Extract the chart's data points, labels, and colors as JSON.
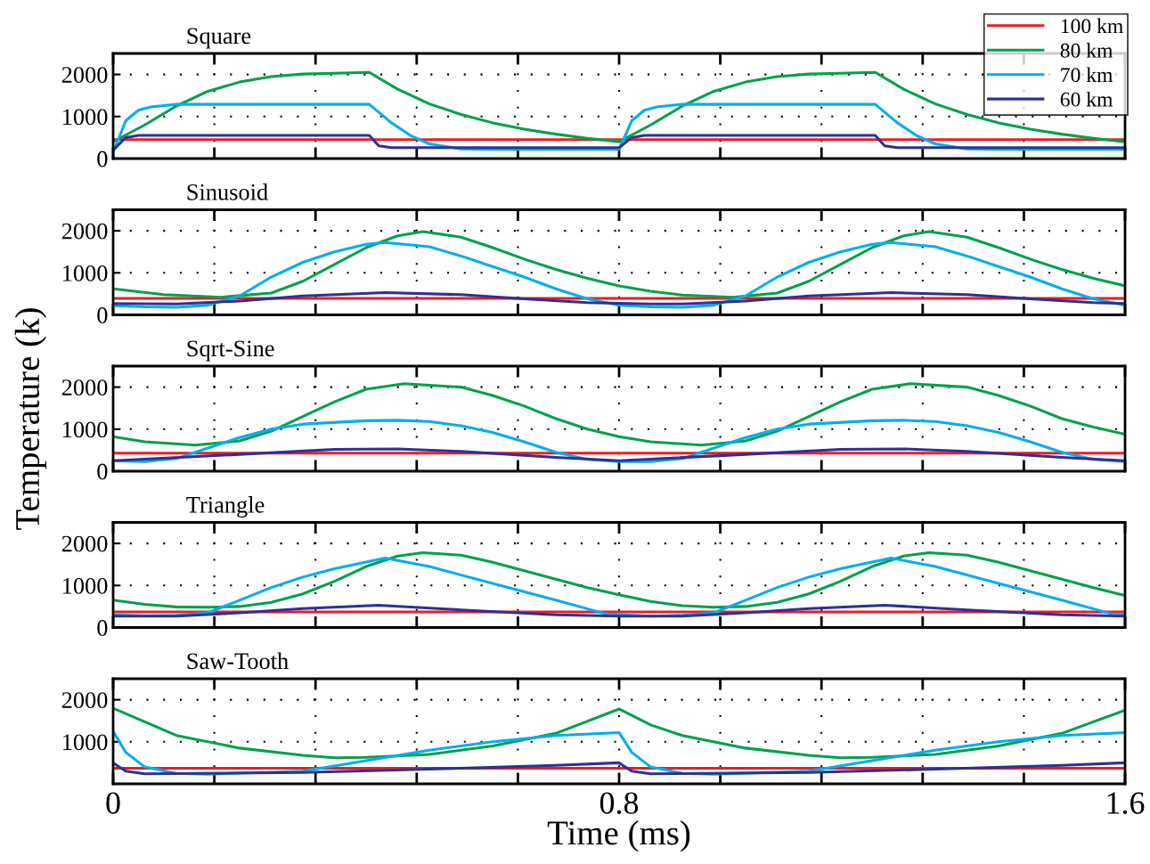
{
  "chart_data": [
    {
      "type": "line",
      "title": "Square",
      "xlim": [
        0,
        1.6
      ],
      "ylim": [
        0,
        2500
      ],
      "xticks": [
        0,
        {
          "value": 0.16,
          "label": null
        },
        {
          "value": 0.32,
          "label": null
        },
        {
          "value": 0.48,
          "label": null
        },
        {
          "value": 0.64,
          "label": null
        },
        0.8,
        {
          "value": 0.96,
          "label": null
        },
        {
          "value": 1.12,
          "label": null
        },
        {
          "value": 1.28,
          "label": null
        },
        {
          "value": 1.44,
          "label": null
        },
        1.6
      ],
      "yticks": [
        0,
        1000,
        2000
      ],
      "tick_labels": "y",
      "grid": true,
      "legend": "top right",
      "line_style": "solid",
      "marker": "none",
      "series": [
        {
          "name": "100 km",
          "color": "#ee1c25",
          "x": [
            0,
            1.6
          ],
          "values": [
            450,
            450
          ]
        },
        {
          "name": "80 km",
          "color": "#00a14b",
          "x": [
            0,
            0.05,
            0.1,
            0.15,
            0.2,
            0.25,
            0.3,
            0.35,
            0.405,
            0.45,
            0.5,
            0.55,
            0.6,
            0.65,
            0.7,
            0.75,
            0.8,
            0.85,
            0.9,
            0.95,
            1.0,
            1.05,
            1.1,
            1.15,
            1.205,
            1.25,
            1.3,
            1.35,
            1.4,
            1.45,
            1.5,
            1.55,
            1.6
          ],
          "values": [
            400,
            800,
            1250,
            1600,
            1820,
            1950,
            2010,
            2030,
            2050,
            1650,
            1300,
            1050,
            850,
            700,
            580,
            480,
            400,
            800,
            1250,
            1600,
            1820,
            1950,
            2010,
            2030,
            2050,
            1650,
            1300,
            1050,
            850,
            700,
            580,
            480,
            400
          ]
        },
        {
          "name": "70 km",
          "color": "#00aeef",
          "x": [
            0,
            0.02,
            0.04,
            0.06,
            0.1,
            0.405,
            0.44,
            0.47,
            0.5,
            0.55,
            0.6,
            0.8,
            0.82,
            0.84,
            0.86,
            0.9,
            1.205,
            1.24,
            1.27,
            1.3,
            1.35,
            1.4,
            1.6
          ],
          "values": [
            150,
            900,
            1150,
            1230,
            1290,
            1290,
            850,
            550,
            350,
            230,
            220,
            220,
            900,
            1150,
            1230,
            1290,
            1290,
            850,
            550,
            350,
            230,
            220,
            220
          ]
        },
        {
          "name": "60 km",
          "color": "#2e3192",
          "x": [
            0,
            0.02,
            0.04,
            0.405,
            0.42,
            0.44,
            0.8,
            0.82,
            0.84,
            1.205,
            1.22,
            1.24,
            1.6
          ],
          "values": [
            200,
            500,
            550,
            550,
            300,
            260,
            260,
            500,
            550,
            550,
            300,
            260,
            260
          ]
        }
      ]
    },
    {
      "type": "line",
      "title": "Sinusoid",
      "xlim": [
        0,
        1.6
      ],
      "ylim": [
        0,
        2500
      ],
      "xticks": [
        0,
        {
          "value": 0.16,
          "label": null
        },
        {
          "value": 0.32,
          "label": null
        },
        {
          "value": 0.48,
          "label": null
        },
        {
          "value": 0.64,
          "label": null
        },
        0.8,
        {
          "value": 0.96,
          "label": null
        },
        {
          "value": 1.12,
          "label": null
        },
        {
          "value": 1.28,
          "label": null
        },
        {
          "value": 1.44,
          "label": null
        },
        1.6
      ],
      "yticks": [
        0,
        1000,
        2000
      ],
      "tick_labels": "y",
      "grid": true,
      "line_style": "solid",
      "marker": "none",
      "series": [
        {
          "color": "#ee1c25",
          "x": [
            0,
            1.6
          ],
          "values": [
            390,
            390
          ]
        },
        {
          "color": "#00a14b",
          "x": [
            0,
            0.08,
            0.17,
            0.25,
            0.3,
            0.35,
            0.4,
            0.45,
            0.49,
            0.55,
            0.6,
            0.655,
            0.7,
            0.75,
            0.8,
            0.85,
            0.9,
            0.98,
            1.05,
            1.1,
            1.15,
            1.2,
            1.25,
            1.29,
            1.35,
            1.4,
            1.455,
            1.5,
            1.55,
            1.6
          ],
          "values": [
            620,
            480,
            420,
            520,
            800,
            1200,
            1600,
            1880,
            1980,
            1850,
            1600,
            1300,
            1080,
            870,
            690,
            560,
            470,
            420,
            520,
            800,
            1200,
            1600,
            1880,
            1980,
            1850,
            1600,
            1300,
            1080,
            870,
            690
          ]
        },
        {
          "color": "#00aeef",
          "x": [
            0,
            0.05,
            0.1,
            0.15,
            0.2,
            0.25,
            0.3,
            0.35,
            0.4,
            0.43,
            0.5,
            0.55,
            0.6,
            0.65,
            0.7,
            0.75,
            0.8,
            0.85,
            0.9,
            0.95,
            1.0,
            1.05,
            1.1,
            1.15,
            1.2,
            1.23,
            1.3,
            1.35,
            1.4,
            1.45,
            1.5,
            1.55,
            1.6
          ],
          "values": [
            220,
            190,
            180,
            230,
            450,
            900,
            1250,
            1500,
            1680,
            1720,
            1620,
            1400,
            1150,
            900,
            620,
            380,
            230,
            190,
            180,
            230,
            450,
            900,
            1250,
            1500,
            1680,
            1720,
            1620,
            1400,
            1150,
            900,
            620,
            380,
            230
          ]
        },
        {
          "color": "#2e3192",
          "x": [
            0,
            0.1,
            0.2,
            0.3,
            0.43,
            0.55,
            0.65,
            0.75,
            0.85,
            0.9,
            1.0,
            1.1,
            1.23,
            1.35,
            1.45,
            1.55,
            1.6
          ],
          "values": [
            270,
            260,
            330,
            450,
            530,
            480,
            380,
            290,
            260,
            260,
            330,
            450,
            530,
            480,
            380,
            290,
            270
          ]
        }
      ]
    },
    {
      "type": "line",
      "title": "Sqrt-Sine",
      "ylabel": "Temperature (k)",
      "xlim": [
        0,
        1.6
      ],
      "ylim": [
        0,
        2500
      ],
      "xticks": [
        0,
        {
          "value": 0.16,
          "label": null
        },
        {
          "value": 0.32,
          "label": null
        },
        {
          "value": 0.48,
          "label": null
        },
        {
          "value": 0.64,
          "label": null
        },
        0.8,
        {
          "value": 0.96,
          "label": null
        },
        {
          "value": 1.12,
          "label": null
        },
        {
          "value": 1.28,
          "label": null
        },
        {
          "value": 1.44,
          "label": null
        },
        1.6
      ],
      "yticks": [
        0,
        1000,
        2000
      ],
      "tick_labels": "y",
      "grid": true,
      "line_style": "solid",
      "marker": "none",
      "series": [
        {
          "color": "#ee1c25",
          "x": [
            0,
            1.6
          ],
          "values": [
            430,
            430
          ]
        },
        {
          "color": "#00a14b",
          "x": [
            0,
            0.05,
            0.13,
            0.2,
            0.25,
            0.3,
            0.35,
            0.4,
            0.46,
            0.55,
            0.6,
            0.65,
            0.7,
            0.75,
            0.8,
            0.85,
            0.93,
            1.0,
            1.05,
            1.1,
            1.15,
            1.2,
            1.26,
            1.35,
            1.4,
            1.45,
            1.5,
            1.55,
            1.6
          ],
          "values": [
            820,
            700,
            620,
            720,
            950,
            1300,
            1650,
            1950,
            2080,
            2000,
            1800,
            1550,
            1250,
            1000,
            820,
            700,
            620,
            720,
            950,
            1300,
            1650,
            1950,
            2080,
            2000,
            1800,
            1550,
            1250,
            1050,
            880
          ]
        },
        {
          "color": "#00aeef",
          "x": [
            0,
            0.05,
            0.1,
            0.15,
            0.2,
            0.25,
            0.3,
            0.4,
            0.45,
            0.5,
            0.55,
            0.6,
            0.65,
            0.7,
            0.75,
            0.8,
            0.85,
            0.9,
            0.95,
            1.0,
            1.05,
            1.1,
            1.2,
            1.25,
            1.3,
            1.35,
            1.4,
            1.45,
            1.5,
            1.55,
            1.6
          ],
          "values": [
            250,
            230,
            300,
            550,
            800,
            1000,
            1120,
            1200,
            1210,
            1180,
            1080,
            920,
            700,
            450,
            280,
            230,
            230,
            300,
            550,
            800,
            1000,
            1120,
            1200,
            1210,
            1180,
            1080,
            920,
            700,
            450,
            280,
            230
          ]
        },
        {
          "color": "#2e3192",
          "x": [
            0,
            0.2,
            0.35,
            0.45,
            0.55,
            0.7,
            0.8,
            1.0,
            1.15,
            1.25,
            1.35,
            1.5,
            1.6
          ],
          "values": [
            250,
            400,
            520,
            530,
            470,
            330,
            250,
            400,
            520,
            530,
            470,
            330,
            250
          ]
        }
      ]
    },
    {
      "type": "line",
      "title": "Triangle",
      "xlim": [
        0,
        1.6
      ],
      "ylim": [
        0,
        2500
      ],
      "xticks": [
        0,
        {
          "value": 0.16,
          "label": null
        },
        {
          "value": 0.32,
          "label": null
        },
        {
          "value": 0.48,
          "label": null
        },
        {
          "value": 0.64,
          "label": null
        },
        0.8,
        {
          "value": 0.96,
          "label": null
        },
        {
          "value": 1.12,
          "label": null
        },
        {
          "value": 1.28,
          "label": null
        },
        {
          "value": 1.44,
          "label": null
        },
        1.6
      ],
      "yticks": [
        0,
        1000,
        2000
      ],
      "tick_labels": "y",
      "grid": true,
      "line_style": "solid",
      "marker": "none",
      "series": [
        {
          "color": "#ee1c25",
          "x": [
            0,
            1.6
          ],
          "values": [
            370,
            370
          ]
        },
        {
          "color": "#00a14b",
          "x": [
            0,
            0.05,
            0.1,
            0.15,
            0.2,
            0.25,
            0.3,
            0.35,
            0.4,
            0.45,
            0.49,
            0.55,
            0.6,
            0.65,
            0.7,
            0.75,
            0.8,
            0.85,
            0.9,
            0.95,
            1.0,
            1.05,
            1.1,
            1.15,
            1.2,
            1.25,
            1.29,
            1.35,
            1.4,
            1.45,
            1.5,
            1.55,
            1.6
          ],
          "values": [
            650,
            550,
            490,
            480,
            500,
            600,
            800,
            1100,
            1450,
            1700,
            1780,
            1720,
            1550,
            1350,
            1150,
            950,
            780,
            620,
            520,
            480,
            500,
            600,
            800,
            1100,
            1450,
            1700,
            1780,
            1720,
            1550,
            1350,
            1150,
            950,
            760
          ]
        },
        {
          "color": "#00aeef",
          "x": [
            0,
            0.05,
            0.1,
            0.15,
            0.2,
            0.25,
            0.3,
            0.35,
            0.43,
            0.5,
            0.6,
            0.7,
            0.78,
            0.85,
            0.9,
            0.95,
            1.0,
            1.05,
            1.1,
            1.15,
            1.23,
            1.3,
            1.4,
            1.5,
            1.58,
            1.6
          ],
          "values": [
            300,
            280,
            290,
            350,
            650,
            950,
            1200,
            1400,
            1650,
            1450,
            1050,
            650,
            320,
            270,
            290,
            350,
            650,
            950,
            1200,
            1400,
            1650,
            1450,
            1050,
            650,
            320,
            300
          ]
        },
        {
          "color": "#2e3192",
          "x": [
            0,
            0.1,
            0.2,
            0.3,
            0.42,
            0.55,
            0.7,
            0.8,
            0.9,
            1.0,
            1.1,
            1.22,
            1.35,
            1.5,
            1.6
          ],
          "values": [
            270,
            270,
            350,
            450,
            530,
            420,
            300,
            270,
            270,
            350,
            450,
            530,
            420,
            300,
            270
          ]
        }
      ]
    },
    {
      "type": "line",
      "title": "Saw-Tooth",
      "xlabel": "Time (ms)",
      "xlim": [
        0,
        1.6
      ],
      "ylim": [
        0,
        2500
      ],
      "xticks": [
        0,
        {
          "value": 0.16,
          "label": null
        },
        {
          "value": 0.32,
          "label": null
        },
        {
          "value": 0.48,
          "label": null
        },
        {
          "value": 0.64,
          "label": null
        },
        0.8,
        {
          "value": 0.96,
          "label": null
        },
        {
          "value": 1.12,
          "label": null
        },
        {
          "value": 1.28,
          "label": null
        },
        {
          "value": 1.44,
          "label": null
        },
        1.6
      ],
      "yticks": [
        {
          "value": 0,
          "label": null
        },
        1000,
        2000
      ],
      "grid": true,
      "line_style": "solid",
      "marker": "none",
      "series": [
        {
          "color": "#ee1c25",
          "x": [
            0,
            1.6
          ],
          "values": [
            370,
            370
          ]
        },
        {
          "color": "#00a14b",
          "x": [
            0,
            0.1,
            0.2,
            0.3,
            0.35,
            0.4,
            0.5,
            0.6,
            0.7,
            0.8,
            0.85,
            0.9,
            1.0,
            1.1,
            1.15,
            1.2,
            1.3,
            1.4,
            1.5,
            1.6
          ],
          "values": [
            1800,
            1150,
            850,
            680,
            620,
            630,
            700,
            900,
            1200,
            1780,
            1400,
            1150,
            850,
            680,
            620,
            630,
            700,
            900,
            1200,
            1750
          ]
        },
        {
          "color": "#00aeef",
          "x": [
            0,
            0.02,
            0.05,
            0.1,
            0.15,
            0.3,
            0.4,
            0.5,
            0.6,
            0.7,
            0.8,
            0.82,
            0.85,
            0.9,
            0.95,
            1.1,
            1.2,
            1.3,
            1.4,
            1.5,
            1.6
          ],
          "values": [
            1250,
            750,
            400,
            250,
            230,
            300,
            550,
            800,
            1000,
            1150,
            1220,
            750,
            400,
            250,
            230,
            300,
            550,
            800,
            1000,
            1150,
            1220
          ]
        },
        {
          "color": "#2e3192",
          "x": [
            0,
            0.02,
            0.05,
            0.3,
            0.5,
            0.7,
            0.8,
            0.82,
            0.85,
            1.1,
            1.3,
            1.5,
            1.6
          ],
          "values": [
            500,
            300,
            240,
            270,
            350,
            440,
            500,
            300,
            240,
            270,
            350,
            440,
            500
          ]
        }
      ]
    }
  ]
}
